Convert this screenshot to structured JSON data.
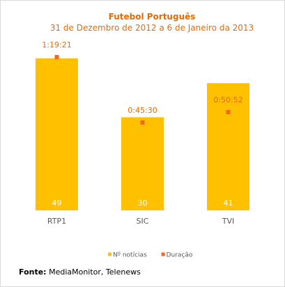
{
  "chart_data": {
    "type": "bar",
    "title": "Futebol Português",
    "subtitle": "31 de Dezembro de 2012 a 6 de Janeiro da 2013",
    "categories": [
      "RTP1",
      "SIC",
      "TVI"
    ],
    "series": [
      {
        "name": "Nº notícias",
        "type": "bar",
        "values": [
          49,
          30,
          41
        ],
        "color": "#ffc000"
      },
      {
        "name": "Duração",
        "type": "marker",
        "values": [
          "1:19:21",
          "0:45:30",
          "0:50:52"
        ],
        "seconds": [
          4761,
          2730,
          3052
        ],
        "color": "#f26522"
      }
    ],
    "bar_ylim": [
      0,
      55
    ],
    "duration_ylim_seconds": [
      0,
      5300
    ],
    "legend_position": "bottom",
    "grid": false
  },
  "source": {
    "label": "Fonte:",
    "text": " MediaMonitor, Telenews"
  }
}
